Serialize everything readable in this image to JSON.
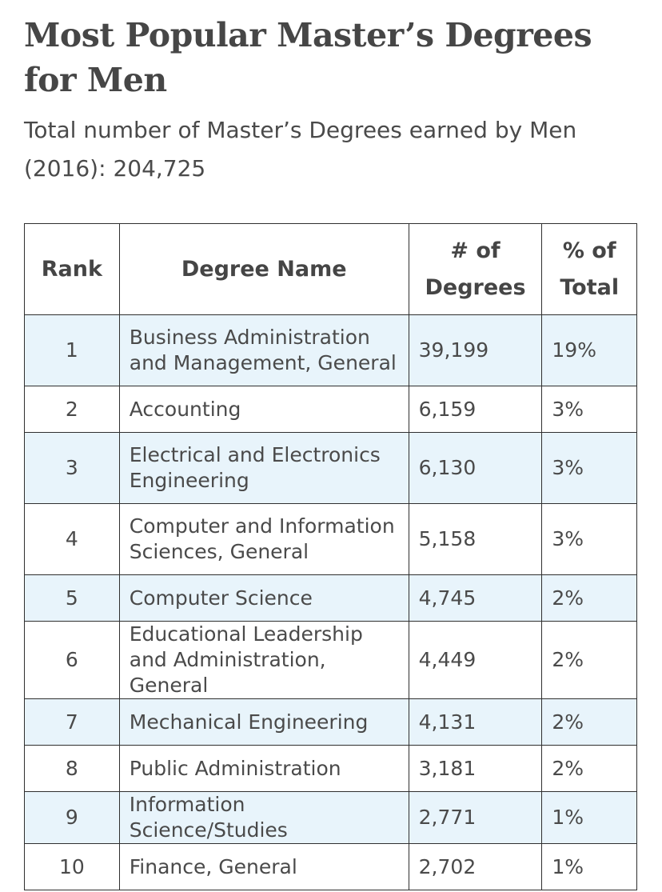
{
  "title": "Most Popular Master’s Degrees for Men",
  "subtitle": "Total number of Master’s Degrees earned by Men (2016): 204,725",
  "table": {
    "headers": {
      "rank": "Rank",
      "degree_name": "Degree Name",
      "num_degrees": "# of Degrees",
      "pct_total": "% of Total"
    },
    "rows": [
      {
        "rank": "1",
        "name": "Business Administration and Management, General",
        "count": "39,199",
        "pct": "19%"
      },
      {
        "rank": "2",
        "name": "Accounting",
        "count": "6,159",
        "pct": "3%"
      },
      {
        "rank": "3",
        "name": "Electrical and Electronics Engineering",
        "count": "6,130",
        "pct": "3%"
      },
      {
        "rank": "4",
        "name": "Computer and Information Sciences, General",
        "count": "5,158",
        "pct": "3%"
      },
      {
        "rank": "5",
        "name": "Computer Science",
        "count": "4,745",
        "pct": "2%"
      },
      {
        "rank": "6",
        "name": "Educational Leadership and Administration, General",
        "count": "4,449",
        "pct": "2%"
      },
      {
        "rank": "7",
        "name": "Mechanical Engineering",
        "count": "4,131",
        "pct": "2%"
      },
      {
        "rank": "8",
        "name": "Public Administration",
        "count": "3,181",
        "pct": "2%"
      },
      {
        "rank": "9",
        "name": "Information Science/Studies",
        "count": "2,771",
        "pct": "1%"
      },
      {
        "rank": "10",
        "name": "Finance, General",
        "count": "2,702",
        "pct": "1%"
      }
    ]
  },
  "colors": {
    "stripe": "#e8f4fb",
    "text": "#4a4a4a",
    "border": "#2f2f2f"
  }
}
